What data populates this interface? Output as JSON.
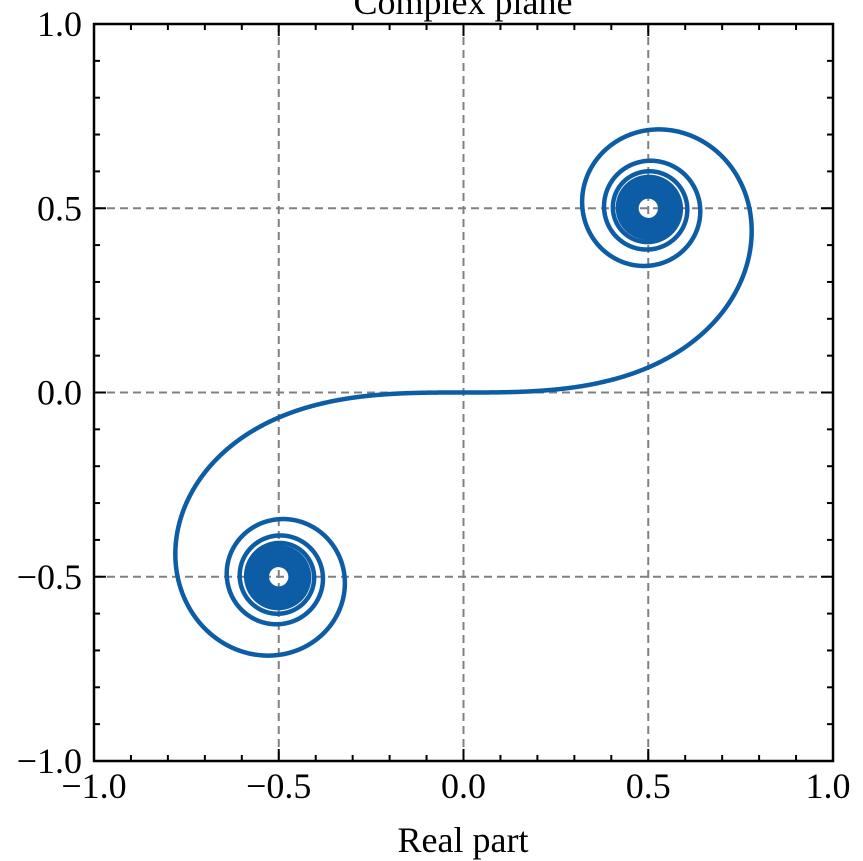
{
  "chart_data": {
    "type": "line",
    "title": "Complex plane",
    "xlabel": "Real part",
    "ylabel": "",
    "xlim": [
      -1.0,
      1.0
    ],
    "ylim": [
      -1.0,
      1.0
    ],
    "grid": true,
    "x_ticks": [
      "−1.0",
      "−0.5",
      "0.0",
      "0.5",
      "1.0"
    ],
    "y_ticks": [
      "−1.0",
      "−0.5",
      "0.0",
      "0.5",
      "1.0"
    ],
    "x_tick_values": [
      -1.0,
      -0.5,
      0.0,
      0.5,
      1.0
    ],
    "y_tick_values": [
      -1.0,
      -0.5,
      0.0,
      0.5,
      1.0
    ],
    "series": [
      {
        "color": "#0c5da5",
        "description_points": {
          "x": [
            -0.5,
            -0.36,
            -0.5,
            -0.78,
            -0.55,
            0.0,
            0.55,
            0.78,
            0.5,
            0.36,
            0.5
          ],
          "y": [
            -0.5,
            -0.5,
            -0.71,
            -0.44,
            -0.07,
            0.0,
            0.07,
            0.44,
            0.71,
            0.5,
            0.5
          ]
        }
      }
    ]
  },
  "colors": {
    "line": "#0c5da5",
    "grid": "#808080",
    "axes": "#000000"
  }
}
